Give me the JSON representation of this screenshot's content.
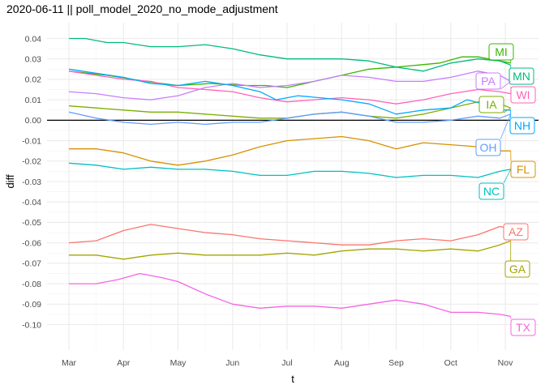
{
  "chart_data": {
    "type": "line",
    "title": "2020-06-11 || poll_model_2020_no_mode_adjustment",
    "xlabel": "t",
    "ylabel": "diff",
    "x_ticks": [
      "Mar",
      "Apr",
      "May",
      "Jun",
      "Jul",
      "Aug",
      "Sep",
      "Oct",
      "Nov"
    ],
    "x_domain": [
      0,
      8.2
    ],
    "ylim": [
      -0.104,
      0.044
    ],
    "y_ticks": [
      0.04,
      0.03,
      0.02,
      0.01,
      0.0,
      -0.01,
      -0.02,
      -0.03,
      -0.04,
      -0.05,
      -0.06,
      -0.07,
      -0.08,
      -0.09,
      -0.1
    ],
    "y_tick_labels": [
      "0.04",
      "0.03",
      "0.02",
      "0.01",
      "0.00",
      "-0.01",
      "-0.02",
      "-0.03",
      "-0.04",
      "-0.05",
      "-0.06",
      "-0.07",
      "-0.08",
      "-0.09",
      "-0.10"
    ],
    "grid": true,
    "zero_line": true,
    "series": [
      {
        "name": "MI",
        "color": "#39B600",
        "x": [
          0,
          0.7,
          1.4,
          2.0,
          2.6,
          3.2,
          3.6,
          4.0,
          4.5,
          5.0,
          5.5,
          6.0,
          6.4,
          6.8,
          7.2,
          7.5,
          7.9,
          8.1
        ],
        "y": [
          0.024,
          0.022,
          0.019,
          0.017,
          0.018,
          0.017,
          0.017,
          0.016,
          0.019,
          0.022,
          0.025,
          0.026,
          0.027,
          0.028,
          0.031,
          0.031,
          0.029,
          0.028
        ]
      },
      {
        "name": "MN",
        "color": "#00BB7D",
        "x": [
          0,
          0.3,
          0.7,
          1.0,
          1.5,
          2.0,
          2.5,
          3.0,
          3.5,
          4.0,
          4.5,
          5.0,
          5.5,
          6.0,
          6.5,
          7.0,
          7.5,
          7.9,
          8.1
        ],
        "y": [
          0.04,
          0.04,
          0.038,
          0.038,
          0.036,
          0.036,
          0.037,
          0.035,
          0.032,
          0.03,
          0.03,
          0.03,
          0.029,
          0.026,
          0.024,
          0.028,
          0.03,
          0.029,
          0.027
        ]
      },
      {
        "name": "PA",
        "color": "#C77CFF",
        "x": [
          0,
          0.5,
          1.0,
          1.5,
          2.0,
          2.5,
          3.0,
          3.5,
          4.0,
          4.5,
          5.0,
          5.5,
          6.0,
          6.5,
          7.0,
          7.5,
          7.9,
          8.1
        ],
        "y": [
          0.014,
          0.013,
          0.011,
          0.01,
          0.012,
          0.016,
          0.018,
          0.016,
          0.017,
          0.019,
          0.022,
          0.021,
          0.019,
          0.019,
          0.021,
          0.024,
          0.022,
          0.019
        ]
      },
      {
        "name": "WI",
        "color": "#FF62BC",
        "x": [
          0,
          0.5,
          1.0,
          1.5,
          2.0,
          2.5,
          3.0,
          3.5,
          4.0,
          4.5,
          5.0,
          5.5,
          6.0,
          6.5,
          7.0,
          7.5,
          7.9,
          8.1
        ],
        "y": [
          0.024,
          0.022,
          0.02,
          0.019,
          0.016,
          0.015,
          0.014,
          0.011,
          0.009,
          0.01,
          0.011,
          0.01,
          0.008,
          0.01,
          0.013,
          0.015,
          0.014,
          0.013
        ]
      },
      {
        "name": "IA",
        "color": "#7CAE00",
        "x": [
          0,
          0.5,
          1.0,
          1.5,
          2.0,
          2.5,
          3.0,
          3.5,
          4.0,
          4.5,
          5.0,
          5.5,
          6.0,
          6.5,
          7.0,
          7.5,
          7.9,
          8.1
        ],
        "y": [
          0.007,
          0.006,
          0.005,
          0.004,
          0.004,
          0.003,
          0.002,
          0.001,
          0.001,
          0.003,
          0.004,
          0.002,
          0.001,
          0.003,
          0.006,
          0.009,
          0.008,
          0.006
        ]
      },
      {
        "name": "NH",
        "color": "#00A9FF",
        "x": [
          0,
          0.5,
          1.0,
          1.5,
          2.0,
          2.5,
          3.0,
          3.5,
          3.8,
          4.2,
          4.6,
          5.0,
          5.5,
          6.0,
          6.5,
          7.0,
          7.3,
          7.6,
          7.9,
          8.1
        ],
        "y": [
          0.025,
          0.023,
          0.021,
          0.018,
          0.017,
          0.019,
          0.017,
          0.014,
          0.01,
          0.012,
          0.011,
          0.01,
          0.008,
          0.003,
          0.005,
          0.006,
          0.01,
          0.008,
          0.005,
          0.005
        ]
      },
      {
        "name": "OH",
        "color": "#619CFF",
        "x": [
          0,
          0.5,
          1.0,
          1.5,
          2.0,
          2.5,
          3.0,
          3.5,
          4.0,
          4.5,
          5.0,
          5.5,
          6.0,
          6.5,
          7.0,
          7.5,
          7.9,
          8.1
        ],
        "y": [
          0.004,
          0.001,
          -0.001,
          -0.002,
          -0.001,
          -0.002,
          -0.001,
          -0.001,
          0.001,
          0.003,
          0.004,
          0.002,
          -0.001,
          -0.001,
          0.0,
          0.002,
          0.001,
          0.003
        ]
      },
      {
        "name": "FL",
        "color": "#D89000",
        "x": [
          0,
          0.5,
          1.0,
          1.5,
          2.0,
          2.5,
          3.0,
          3.5,
          4.0,
          4.5,
          5.0,
          5.5,
          6.0,
          6.5,
          7.0,
          7.5,
          7.9,
          8.1
        ],
        "y": [
          -0.014,
          -0.014,
          -0.016,
          -0.02,
          -0.022,
          -0.02,
          -0.017,
          -0.013,
          -0.01,
          -0.009,
          -0.008,
          -0.01,
          -0.014,
          -0.011,
          -0.012,
          -0.013,
          -0.015,
          -0.015
        ]
      },
      {
        "name": "NC",
        "color": "#00BFC4",
        "x": [
          0,
          0.5,
          1.0,
          1.5,
          2.0,
          2.5,
          3.0,
          3.5,
          4.0,
          4.5,
          5.0,
          5.5,
          6.0,
          6.5,
          7.0,
          7.5,
          7.9,
          8.1
        ],
        "y": [
          -0.021,
          -0.022,
          -0.024,
          -0.023,
          -0.024,
          -0.024,
          -0.025,
          -0.027,
          -0.027,
          -0.025,
          -0.025,
          -0.026,
          -0.028,
          -0.027,
          -0.027,
          -0.028,
          -0.025,
          -0.024
        ]
      },
      {
        "name": "AZ",
        "color": "#F8766D",
        "x": [
          0,
          0.5,
          1.0,
          1.5,
          2.0,
          2.5,
          3.0,
          3.5,
          4.0,
          4.5,
          5.0,
          5.5,
          6.0,
          6.5,
          7.0,
          7.5,
          7.9,
          8.1
        ],
        "y": [
          -0.06,
          -0.059,
          -0.054,
          -0.051,
          -0.053,
          -0.055,
          -0.056,
          -0.058,
          -0.059,
          -0.06,
          -0.061,
          -0.061,
          -0.059,
          -0.058,
          -0.059,
          -0.056,
          -0.052,
          -0.053
        ]
      },
      {
        "name": "GA",
        "color": "#A3A500",
        "x": [
          0,
          0.5,
          1.0,
          1.5,
          2.0,
          2.5,
          3.0,
          3.5,
          4.0,
          4.5,
          5.0,
          5.5,
          6.0,
          6.5,
          7.0,
          7.5,
          7.9,
          8.1
        ],
        "y": [
          -0.066,
          -0.066,
          -0.068,
          -0.066,
          -0.065,
          -0.066,
          -0.066,
          -0.066,
          -0.065,
          -0.066,
          -0.064,
          -0.063,
          -0.063,
          -0.064,
          -0.063,
          -0.064,
          -0.061,
          -0.059
        ]
      },
      {
        "name": "TX",
        "color": "#F564E3",
        "x": [
          0,
          0.5,
          0.9,
          1.3,
          1.7,
          2.0,
          2.5,
          3.0,
          3.5,
          4.0,
          4.5,
          5.0,
          5.5,
          6.0,
          6.5,
          7.0,
          7.5,
          7.9,
          8.1
        ],
        "y": [
          -0.08,
          -0.08,
          -0.078,
          -0.075,
          -0.077,
          -0.079,
          -0.085,
          -0.09,
          -0.092,
          -0.091,
          -0.091,
          -0.092,
          -0.09,
          -0.088,
          -0.09,
          -0.094,
          -0.094,
          -0.095,
          -0.096
        ]
      }
    ],
    "labels": [
      "MI",
      "MN",
      "PA",
      "WI",
      "IA",
      "NH",
      "OH",
      "FL",
      "NC",
      "AZ",
      "GA",
      "TX"
    ]
  }
}
